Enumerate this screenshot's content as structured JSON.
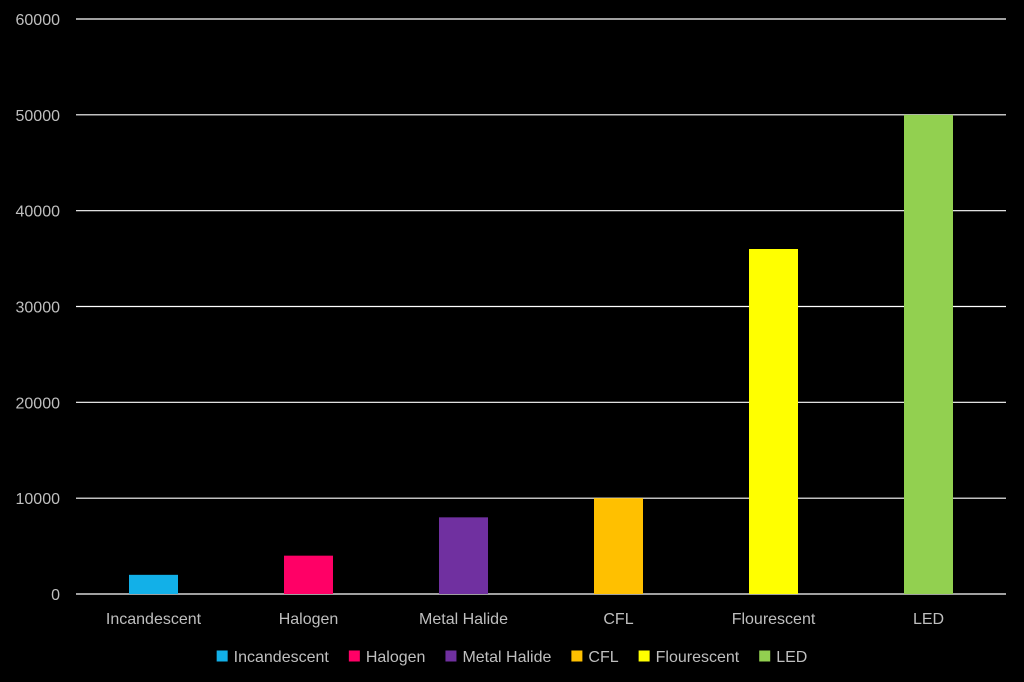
{
  "chart_data": {
    "type": "bar",
    "title": "",
    "xlabel": "",
    "ylabel": "",
    "ylim": [
      0,
      60000
    ],
    "yticks": [
      0,
      10000,
      20000,
      30000,
      40000,
      50000,
      60000
    ],
    "grid": true,
    "legend": "bottom",
    "categories": [
      "Incandescent",
      "Halogen",
      "Metal Halide",
      "CFL",
      "Flourescent",
      "LED"
    ],
    "values": [
      2000,
      4000,
      8000,
      10000,
      36000,
      50000
    ],
    "colors": [
      "#12b0e8",
      "#ff0066",
      "#7030a0",
      "#ffc000",
      "#ffff00",
      "#92d050"
    ],
    "background": "#000000",
    "gridline_color": "#ffffff",
    "text_color": "#bfbfbf"
  }
}
